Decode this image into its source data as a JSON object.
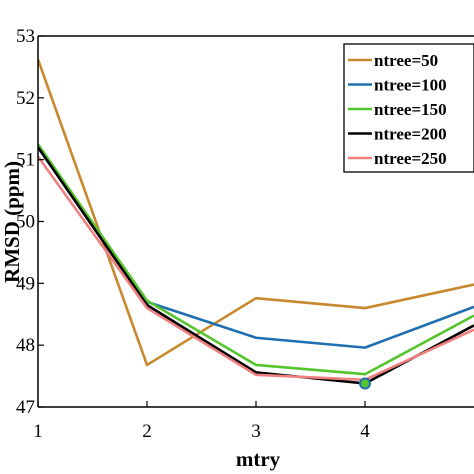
{
  "chart_data": {
    "type": "line",
    "xlabel": "mtry",
    "ylabel": "RMSD (ppm)",
    "xlim": [
      1,
      5
    ],
    "ylim": [
      47,
      53
    ],
    "x_ticks": [
      "1",
      "2",
      "3",
      "4"
    ],
    "y_ticks": [
      "47",
      "48",
      "49",
      "50",
      "51",
      "52",
      "53"
    ],
    "x": [
      1,
      2,
      3,
      4,
      5
    ],
    "legend_position": "top-right",
    "series": [
      {
        "name": "ntree=50",
        "color": "#C8892E",
        "values": [
          52.62,
          47.68,
          48.76,
          48.6,
          48.98
        ]
      },
      {
        "name": "ntree=100",
        "color": "#1F6FB0",
        "values": [
          51.2,
          48.7,
          48.12,
          47.96,
          48.62
        ]
      },
      {
        "name": "ntree=150",
        "color": "#55C52D",
        "values": [
          51.25,
          48.72,
          47.68,
          47.53,
          48.48
        ]
      },
      {
        "name": "ntree=200",
        "color": "#000000",
        "values": [
          51.2,
          48.65,
          47.56,
          47.38,
          48.32
        ]
      },
      {
        "name": "ntree=250",
        "color": "#F08080",
        "values": [
          51.05,
          48.6,
          47.52,
          47.44,
          48.25
        ]
      }
    ],
    "highlight_point": {
      "x": 4,
      "y": 47.38,
      "fill": "#55C52D",
      "stroke": "#1F6FB0"
    }
  }
}
